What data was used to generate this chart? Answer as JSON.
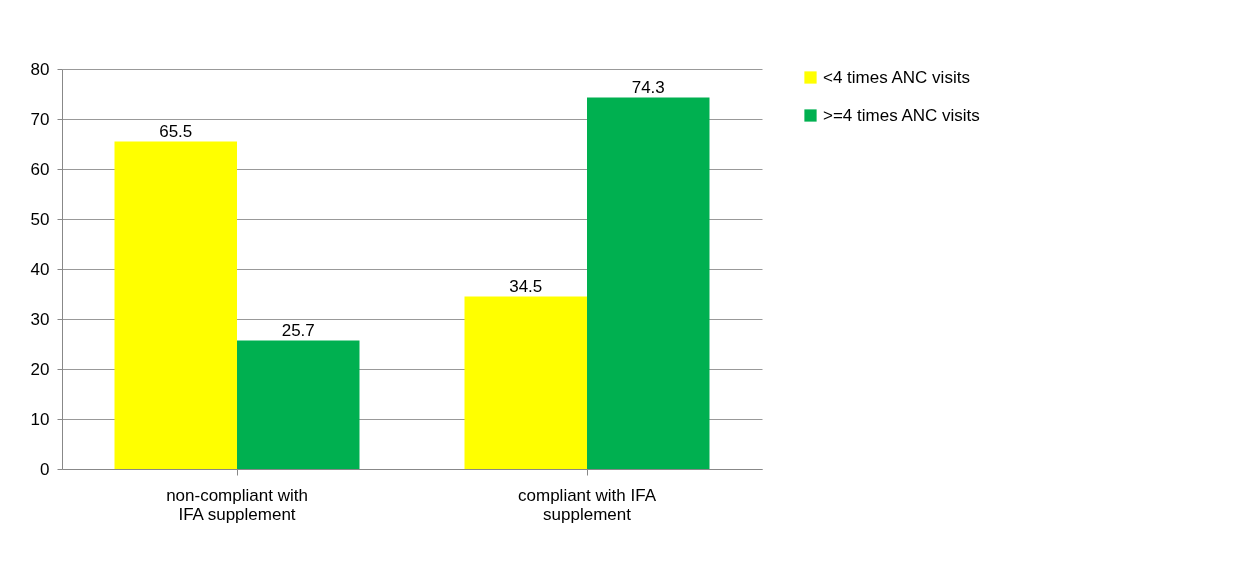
{
  "chart_data": {
    "type": "bar",
    "categories": [
      "non-compliant with IFA supplement",
      "compliant with IFA supplement"
    ],
    "series": [
      {
        "name": "<4 times ANC visits",
        "color": "#ffff00",
        "values": [
          65.5,
          34.5
        ]
      },
      {
        "name": ">=4 times ANC visits",
        "color": "#00b050",
        "values": [
          25.7,
          74.3
        ]
      }
    ],
    "ylim": [
      0,
      80
    ],
    "yticks": [
      0,
      10,
      20,
      30,
      40,
      50,
      60,
      70,
      80
    ],
    "grid": "y",
    "legend": "right",
    "data_labels": true
  }
}
